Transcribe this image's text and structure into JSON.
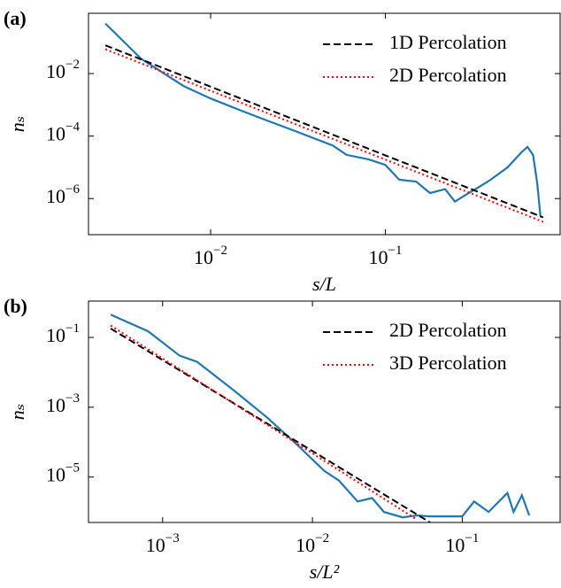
{
  "chart_data": [
    {
      "type": "line",
      "panel_label": "(a)",
      "xlabel": "s/L",
      "ylabel": "nₛ",
      "xscale": "log",
      "yscale": "log",
      "xlim": [
        0.002,
        1
      ],
      "ylim": [
        7e-08,
        0.85
      ],
      "xticks": [
        {
          "value": 0.01,
          "label": "10−2"
        },
        {
          "value": 0.1,
          "label": "10−1"
        }
      ],
      "yticks": [
        {
          "value": 0.01,
          "label": "10−2"
        },
        {
          "value": 0.0001,
          "label": "10−4"
        },
        {
          "value": 1e-06,
          "label": "10−6"
        }
      ],
      "legend": "upper right",
      "series": [
        {
          "color": "#1f77b4",
          "linestyle": "solid",
          "x": [
            0.0025,
            0.004,
            0.007,
            0.01,
            0.015,
            0.02,
            0.03,
            0.05,
            0.06,
            0.08,
            0.1,
            0.12,
            0.15,
            0.18,
            0.22,
            0.25,
            0.3,
            0.35,
            0.4,
            0.5,
            0.6,
            0.65,
            0.7,
            0.74,
            0.77,
            0.78
          ],
          "values": [
            0.4,
            0.03,
            0.004,
            0.0016,
            0.00065,
            0.00035,
            0.00015,
            5e-05,
            2.5e-05,
            1.8e-05,
            1.2e-05,
            4e-06,
            3.5e-06,
            1.5e-06,
            2e-06,
            8e-07,
            1.5e-06,
            2.5e-06,
            4e-06,
            1e-05,
            3e-05,
            4.5e-05,
            2.5e-05,
            3e-06,
            3e-07,
            2.5e-07
          ]
        },
        {
          "name": "1D Percolation",
          "color": "#000000",
          "linestyle": "dashed",
          "x": [
            0.0025,
            0.8
          ],
          "values": [
            0.08,
            2.5e-07
          ]
        },
        {
          "name": "2D Percolation",
          "color": "#ff0000",
          "linestyle": "dotted",
          "x": [
            0.0025,
            0.8
          ],
          "values": [
            0.06,
            1.8e-07
          ]
        }
      ]
    },
    {
      "type": "line",
      "panel_label": "(b)",
      "xlabel": "s/L²",
      "ylabel": "nₛ",
      "xscale": "log",
      "yscale": "log",
      "xlim": [
        0.00032,
        0.45
      ],
      "ylim": [
        5e-07,
        1.1
      ],
      "xticks": [
        {
          "value": 0.001,
          "label": "10−3"
        },
        {
          "value": 0.01,
          "label": "10−2"
        },
        {
          "value": 0.1,
          "label": "10−1"
        }
      ],
      "yticks": [
        {
          "value": 0.1,
          "label": "10−1"
        },
        {
          "value": 0.001,
          "label": "10−3"
        },
        {
          "value": 1e-05,
          "label": "10−5"
        }
      ],
      "legend": "upper right",
      "series": [
        {
          "color": "#1f77b4",
          "linestyle": "solid",
          "x": [
            0.00045,
            0.0008,
            0.0013,
            0.0017,
            0.003,
            0.005,
            0.008,
            0.012,
            0.015,
            0.02,
            0.025,
            0.03,
            0.04,
            0.05,
            0.06,
            0.1,
            0.12,
            0.15,
            0.2,
            0.22,
            0.25,
            0.28
          ],
          "values": [
            0.45,
            0.15,
            0.03,
            0.02,
            0.003,
            0.0005,
            8e-05,
            1.5e-05,
            8e-06,
            2e-06,
            2.5e-06,
            1e-06,
            7e-07,
            8e-07,
            7.5e-07,
            7.5e-07,
            2e-06,
            1e-06,
            3.5e-06,
            1e-06,
            3e-06,
            8e-07
          ]
        },
        {
          "name": "2D Percolation",
          "color": "#000000",
          "linestyle": "dashed",
          "x": [
            0.00045,
            0.061
          ],
          "values": [
            0.18,
            5e-07
          ]
        },
        {
          "name": "3D Percolation",
          "color": "#ff0000",
          "linestyle": "dotted",
          "x": [
            0.00045,
            0.05
          ],
          "values": [
            0.22,
            6e-07
          ]
        }
      ]
    }
  ]
}
